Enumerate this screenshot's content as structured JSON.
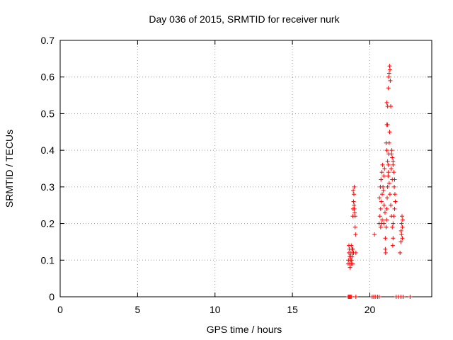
{
  "chart_data": {
    "type": "scatter",
    "title": "Day 036 of 2015, SRMTID for receiver nurk",
    "xlabel": "GPS time / hours",
    "ylabel": "SRMTID / TECUs",
    "xlim": [
      0,
      24
    ],
    "ylim": [
      0,
      0.7
    ],
    "xticks": [
      0,
      5,
      10,
      15,
      20
    ],
    "yticks": [
      0,
      0.1,
      0.2,
      0.3,
      0.4,
      0.5,
      0.6,
      0.7
    ],
    "xtick_labels": [
      "0",
      "5",
      "10",
      "15",
      "20"
    ],
    "ytick_labels": [
      "0",
      "0.1",
      "0.2",
      "0.3",
      "0.4",
      "0.5",
      "0.6",
      "0.7"
    ],
    "grid": true,
    "marker": "plus",
    "marker_color": "#ff0000",
    "series": [
      {
        "points": [
          [
            18.6,
            0.09
          ],
          [
            18.62,
            0.1
          ],
          [
            18.65,
            0.12
          ],
          [
            18.68,
            0.13
          ],
          [
            18.7,
            0.11
          ],
          [
            18.72,
            0.08
          ],
          [
            18.75,
            0.1
          ],
          [
            18.78,
            0.12
          ],
          [
            18.8,
            0.14
          ],
          [
            18.82,
            0.1
          ],
          [
            18.85,
            0.11
          ],
          [
            18.88,
            0.09
          ],
          [
            18.9,
            0.13
          ],
          [
            18.92,
            0.12
          ],
          [
            18.65,
            0.14
          ],
          [
            18.7,
            0.09
          ],
          [
            18.75,
            0.11
          ],
          [
            18.8,
            0.09
          ],
          [
            18.85,
            0.13
          ],
          [
            18.95,
            0.12
          ],
          [
            18.9,
            0.22
          ],
          [
            18.92,
            0.24
          ],
          [
            18.95,
            0.26
          ],
          [
            18.97,
            0.28
          ],
          [
            19.0,
            0.3
          ],
          [
            18.98,
            0.25
          ],
          [
            19.02,
            0.23
          ],
          [
            19.05,
            0.22
          ],
          [
            18.93,
            0.29
          ],
          [
            19.0,
            0.24
          ],
          [
            19.05,
            0.19
          ],
          [
            19.08,
            0.17
          ],
          [
            19.1,
            0.12
          ],
          [
            20.3,
            0.17
          ],
          [
            20.6,
            0.2
          ],
          [
            20.65,
            0.22
          ],
          [
            20.7,
            0.24
          ],
          [
            20.75,
            0.26
          ],
          [
            20.8,
            0.28
          ],
          [
            20.85,
            0.3
          ],
          [
            20.9,
            0.33
          ],
          [
            20.95,
            0.35
          ],
          [
            20.62,
            0.27
          ],
          [
            20.68,
            0.3
          ],
          [
            20.72,
            0.32
          ],
          [
            20.78,
            0.34
          ],
          [
            20.82,
            0.36
          ],
          [
            20.88,
            0.29
          ],
          [
            20.92,
            0.25
          ],
          [
            20.98,
            0.23
          ],
          [
            20.7,
            0.19
          ],
          [
            20.75,
            0.2
          ],
          [
            20.8,
            0.21
          ],
          [
            20.9,
            0.2
          ],
          [
            21.0,
            0.13
          ],
          [
            21.02,
            0.12
          ],
          [
            21.0,
            0.16
          ],
          [
            21.05,
            0.19
          ],
          [
            21.08,
            0.21
          ],
          [
            21.1,
            0.24
          ],
          [
            21.12,
            0.27
          ],
          [
            21.15,
            0.3
          ],
          [
            21.18,
            0.33
          ],
          [
            21.2,
            0.36
          ],
          [
            21.22,
            0.39
          ],
          [
            21.25,
            0.42
          ],
          [
            21.28,
            0.45
          ],
          [
            21.1,
            0.47
          ],
          [
            21.15,
            0.47
          ],
          [
            21.1,
            0.53
          ],
          [
            21.15,
            0.52
          ],
          [
            21.2,
            0.57
          ],
          [
            21.22,
            0.6
          ],
          [
            21.25,
            0.61
          ],
          [
            21.28,
            0.63
          ],
          [
            21.3,
            0.62
          ],
          [
            21.32,
            0.59
          ],
          [
            21.35,
            0.52
          ],
          [
            21.05,
            0.42
          ],
          [
            21.1,
            0.4
          ],
          [
            21.15,
            0.37
          ],
          [
            21.2,
            0.34
          ],
          [
            21.25,
            0.31
          ],
          [
            21.3,
            0.28
          ],
          [
            21.35,
            0.25
          ],
          [
            21.4,
            0.22
          ],
          [
            21.45,
            0.19
          ],
          [
            21.5,
            0.16
          ],
          [
            21.48,
            0.14
          ],
          [
            21.4,
            0.39
          ],
          [
            21.45,
            0.38
          ],
          [
            21.5,
            0.36
          ],
          [
            21.55,
            0.34
          ],
          [
            21.6,
            0.32
          ],
          [
            21.58,
            0.3
          ],
          [
            21.62,
            0.28
          ],
          [
            21.65,
            0.26
          ],
          [
            21.6,
            0.24
          ],
          [
            21.55,
            0.22
          ],
          [
            21.5,
            0.2
          ],
          [
            21.45,
            0.32
          ],
          [
            21.5,
            0.37
          ],
          [
            21.42,
            0.4
          ],
          [
            21.38,
            0.35
          ],
          [
            21.95,
            0.12
          ],
          [
            22.0,
            0.15
          ],
          [
            22.05,
            0.17
          ],
          [
            22.1,
            0.19
          ],
          [
            22.12,
            0.21
          ],
          [
            22.08,
            0.22
          ],
          [
            22.05,
            0.2
          ],
          [
            22.1,
            0.16
          ],
          [
            22.02,
            0.18
          ]
        ],
        "zero_points": [
          18.6,
          18.65,
          18.7,
          18.75,
          18.8,
          19.1,
          20.15,
          20.25,
          20.35,
          20.5,
          20.6,
          21.7,
          21.85,
          22.0,
          22.15,
          22.6
        ]
      }
    ]
  }
}
